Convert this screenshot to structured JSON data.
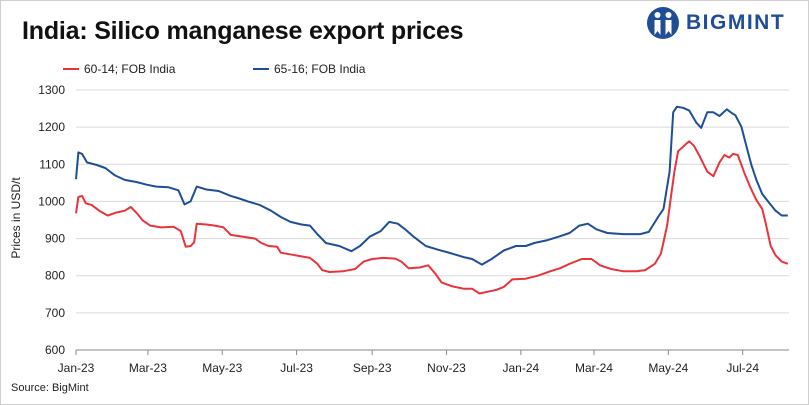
{
  "header": {
    "title": "India: Silico manganese export prices",
    "logo_text": "BIGMINT"
  },
  "footer": {
    "source": "Source: BigMint"
  },
  "colors": {
    "series_1": "#e8343a",
    "series_2": "#1f4e96",
    "grid": "#d9d9d9",
    "logo": "#1f4e96"
  },
  "chart_data": {
    "type": "line",
    "title": "India: Silico manganese export prices",
    "xlabel": "",
    "ylabel": "Prices in USD/t",
    "ylim": [
      600,
      1300
    ],
    "yticks": [
      600,
      700,
      800,
      900,
      1000,
      1100,
      1200,
      1300
    ],
    "xlim": [
      "2023-01-01",
      "2024-08-08"
    ],
    "xtick_labels": [
      "Jan-23",
      "Mar-23",
      "May-23",
      "Jul-23",
      "Sep-23",
      "Nov-23",
      "Jan-24",
      "Mar-24",
      "May-24",
      "Jul-24"
    ],
    "xtick_dates": [
      "2023-01-01",
      "2023-03-01",
      "2023-05-01",
      "2023-07-01",
      "2023-09-01",
      "2023-11-01",
      "2024-01-01",
      "2024-03-01",
      "2024-05-01",
      "2024-07-01"
    ],
    "grid": true,
    "legend_position": "top-left",
    "series": [
      {
        "name": "60-14; FOB India",
        "color": "#e8343a",
        "points": [
          [
            "2023-01-01",
            968
          ],
          [
            "2023-01-03",
            1012
          ],
          [
            "2023-01-06",
            1015
          ],
          [
            "2023-01-09",
            995
          ],
          [
            "2023-01-14",
            990
          ],
          [
            "2023-01-20",
            975
          ],
          [
            "2023-01-27",
            962
          ],
          [
            "2023-02-03",
            970
          ],
          [
            "2023-02-10",
            975
          ],
          [
            "2023-02-15",
            985
          ],
          [
            "2023-02-20",
            968
          ],
          [
            "2023-02-25",
            948
          ],
          [
            "2023-03-03",
            935
          ],
          [
            "2023-03-12",
            930
          ],
          [
            "2023-03-22",
            932
          ],
          [
            "2023-03-28",
            920
          ],
          [
            "2023-04-01",
            878
          ],
          [
            "2023-04-05",
            880
          ],
          [
            "2023-04-08",
            890
          ],
          [
            "2023-04-10",
            940
          ],
          [
            "2023-04-18",
            938
          ],
          [
            "2023-04-25",
            935
          ],
          [
            "2023-05-02",
            930
          ],
          [
            "2023-05-08",
            910
          ],
          [
            "2023-05-18",
            905
          ],
          [
            "2023-05-28",
            900
          ],
          [
            "2023-06-02",
            888
          ],
          [
            "2023-06-08",
            880
          ],
          [
            "2023-06-15",
            878
          ],
          [
            "2023-06-18",
            862
          ],
          [
            "2023-06-25",
            858
          ],
          [
            "2023-07-05",
            852
          ],
          [
            "2023-07-12",
            848
          ],
          [
            "2023-07-18",
            832
          ],
          [
            "2023-07-22",
            815
          ],
          [
            "2023-07-28",
            810
          ],
          [
            "2023-08-08",
            812
          ],
          [
            "2023-08-18",
            818
          ],
          [
            "2023-08-25",
            838
          ],
          [
            "2023-09-01",
            845
          ],
          [
            "2023-09-10",
            848
          ],
          [
            "2023-09-20",
            846
          ],
          [
            "2023-09-25",
            838
          ],
          [
            "2023-10-01",
            820
          ],
          [
            "2023-10-10",
            822
          ],
          [
            "2023-10-17",
            828
          ],
          [
            "2023-10-23",
            805
          ],
          [
            "2023-10-28",
            782
          ],
          [
            "2023-11-05",
            772
          ],
          [
            "2023-11-15",
            765
          ],
          [
            "2023-11-22",
            765
          ],
          [
            "2023-11-28",
            752
          ],
          [
            "2023-12-05",
            757
          ],
          [
            "2023-12-12",
            762
          ],
          [
            "2023-12-18",
            770
          ],
          [
            "2023-12-25",
            790
          ],
          [
            "2024-01-05",
            792
          ],
          [
            "2024-01-15",
            800
          ],
          [
            "2024-01-25",
            812
          ],
          [
            "2024-02-02",
            820
          ],
          [
            "2024-02-10",
            832
          ],
          [
            "2024-02-20",
            845
          ],
          [
            "2024-02-28",
            845
          ],
          [
            "2024-03-06",
            828
          ],
          [
            "2024-03-15",
            818
          ],
          [
            "2024-03-25",
            812
          ],
          [
            "2024-04-05",
            812
          ],
          [
            "2024-04-12",
            815
          ],
          [
            "2024-04-20",
            832
          ],
          [
            "2024-04-25",
            860
          ],
          [
            "2024-04-30",
            935
          ],
          [
            "2024-05-03",
            1010
          ],
          [
            "2024-05-06",
            1080
          ],
          [
            "2024-05-09",
            1135
          ],
          [
            "2024-05-14",
            1150
          ],
          [
            "2024-05-18",
            1162
          ],
          [
            "2024-05-22",
            1150
          ],
          [
            "2024-05-27",
            1120
          ],
          [
            "2024-06-02",
            1080
          ],
          [
            "2024-06-07",
            1068
          ],
          [
            "2024-06-12",
            1105
          ],
          [
            "2024-06-16",
            1125
          ],
          [
            "2024-06-20",
            1118
          ],
          [
            "2024-06-23",
            1128
          ],
          [
            "2024-06-27",
            1125
          ],
          [
            "2024-07-02",
            1080
          ],
          [
            "2024-07-07",
            1040
          ],
          [
            "2024-07-12",
            1005
          ],
          [
            "2024-07-17",
            980
          ],
          [
            "2024-07-20",
            940
          ],
          [
            "2024-07-24",
            880
          ],
          [
            "2024-07-28",
            855
          ],
          [
            "2024-08-02",
            838
          ],
          [
            "2024-08-07",
            832
          ]
        ]
      },
      {
        "name": "65-16; FOB India",
        "color": "#1f4e96",
        "points": [
          [
            "2023-01-01",
            1060
          ],
          [
            "2023-01-03",
            1132
          ],
          [
            "2023-01-06",
            1128
          ],
          [
            "2023-01-10",
            1105
          ],
          [
            "2023-01-18",
            1098
          ],
          [
            "2023-01-25",
            1090
          ],
          [
            "2023-02-02",
            1070
          ],
          [
            "2023-02-10",
            1058
          ],
          [
            "2023-02-20",
            1052
          ],
          [
            "2023-02-28",
            1045
          ],
          [
            "2023-03-08",
            1040
          ],
          [
            "2023-03-18",
            1038
          ],
          [
            "2023-03-26",
            1030
          ],
          [
            "2023-03-31",
            992
          ],
          [
            "2023-04-05",
            1000
          ],
          [
            "2023-04-10",
            1040
          ],
          [
            "2023-04-18",
            1032
          ],
          [
            "2023-04-28",
            1028
          ],
          [
            "2023-05-08",
            1015
          ],
          [
            "2023-05-15",
            1008
          ],
          [
            "2023-05-22",
            1000
          ],
          [
            "2023-06-01",
            990
          ],
          [
            "2023-06-10",
            975
          ],
          [
            "2023-06-18",
            958
          ],
          [
            "2023-06-26",
            945
          ],
          [
            "2023-07-05",
            938
          ],
          [
            "2023-07-12",
            935
          ],
          [
            "2023-07-18",
            912
          ],
          [
            "2023-07-25",
            888
          ],
          [
            "2023-08-05",
            880
          ],
          [
            "2023-08-15",
            866
          ],
          [
            "2023-08-22",
            880
          ],
          [
            "2023-08-30",
            905
          ],
          [
            "2023-09-08",
            920
          ],
          [
            "2023-09-15",
            945
          ],
          [
            "2023-09-22",
            940
          ],
          [
            "2023-09-28",
            925
          ],
          [
            "2023-10-05",
            905
          ],
          [
            "2023-10-15",
            880
          ],
          [
            "2023-10-25",
            870
          ],
          [
            "2023-11-05",
            860
          ],
          [
            "2023-11-15",
            850
          ],
          [
            "2023-11-22",
            845
          ],
          [
            "2023-11-30",
            830
          ],
          [
            "2023-12-08",
            845
          ],
          [
            "2023-12-18",
            868
          ],
          [
            "2023-12-28",
            880
          ],
          [
            "2024-01-05",
            880
          ],
          [
            "2024-01-12",
            888
          ],
          [
            "2024-01-22",
            895
          ],
          [
            "2024-02-01",
            905
          ],
          [
            "2024-02-10",
            915
          ],
          [
            "2024-02-18",
            935
          ],
          [
            "2024-02-25",
            940
          ],
          [
            "2024-03-03",
            925
          ],
          [
            "2024-03-12",
            915
          ],
          [
            "2024-03-25",
            912
          ],
          [
            "2024-04-08",
            912
          ],
          [
            "2024-04-15",
            918
          ],
          [
            "2024-04-22",
            955
          ],
          [
            "2024-04-27",
            980
          ],
          [
            "2024-05-02",
            1080
          ],
          [
            "2024-05-05",
            1240
          ],
          [
            "2024-05-08",
            1255
          ],
          [
            "2024-05-13",
            1252
          ],
          [
            "2024-05-18",
            1245
          ],
          [
            "2024-05-24",
            1212
          ],
          [
            "2024-05-28",
            1198
          ],
          [
            "2024-06-02",
            1240
          ],
          [
            "2024-06-07",
            1240
          ],
          [
            "2024-06-12",
            1230
          ],
          [
            "2024-06-18",
            1248
          ],
          [
            "2024-06-22",
            1238
          ],
          [
            "2024-06-25",
            1232
          ],
          [
            "2024-06-30",
            1200
          ],
          [
            "2024-07-04",
            1150
          ],
          [
            "2024-07-08",
            1100
          ],
          [
            "2024-07-12",
            1060
          ],
          [
            "2024-07-17",
            1020
          ],
          [
            "2024-07-23",
            995
          ],
          [
            "2024-07-28",
            975
          ],
          [
            "2024-08-02",
            962
          ],
          [
            "2024-08-07",
            962
          ]
        ]
      }
    ]
  }
}
